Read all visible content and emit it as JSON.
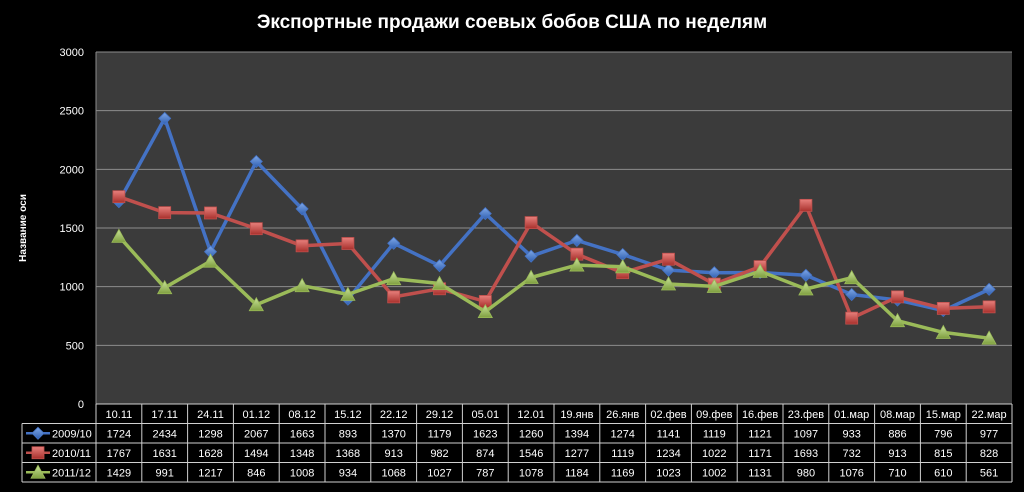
{
  "chart_data": {
    "type": "line",
    "title": "Экспортные продажи соевых бобов США по неделям",
    "xlabel": "",
    "ylabel": "Название оси",
    "ylim": [
      0,
      3000
    ],
    "yticks": [
      0,
      500,
      1000,
      1500,
      2000,
      2500,
      3000
    ],
    "grid": true,
    "legend": "data-table",
    "categories": [
      "10.11",
      "17.11",
      "24.11",
      "01.12",
      "08.12",
      "15.12",
      "22.12",
      "29.12",
      "05.01",
      "12.01",
      "19.янв",
      "26.янв",
      "02.фев",
      "09.фев",
      "16.фев",
      "23.фев",
      "01.мар",
      "08.мар",
      "15.мар",
      "22.мар"
    ],
    "series": [
      {
        "name": "2009/10",
        "color": "#4472c4",
        "marker": "diamond",
        "values": [
          1724,
          2434,
          1298,
          2067,
          1663,
          893,
          1370,
          1179,
          1623,
          1260,
          1394,
          1274,
          1141,
          1119,
          1121,
          1097,
          933,
          886,
          796,
          977
        ]
      },
      {
        "name": "2010/11",
        "color": "#c0504d",
        "marker": "square",
        "values": [
          1767,
          1631,
          1628,
          1494,
          1348,
          1368,
          913,
          982,
          874,
          1546,
          1277,
          1119,
          1234,
          1022,
          1171,
          1693,
          732,
          913,
          815,
          828
        ]
      },
      {
        "name": "2011/12",
        "color": "#9bbb59",
        "marker": "triangle",
        "values": [
          1429,
          991,
          1217,
          846,
          1008,
          934,
          1068,
          1027,
          787,
          1078,
          1184,
          1169,
          1023,
          1002,
          1131,
          980,
          1076,
          710,
          610,
          561
        ]
      }
    ]
  }
}
